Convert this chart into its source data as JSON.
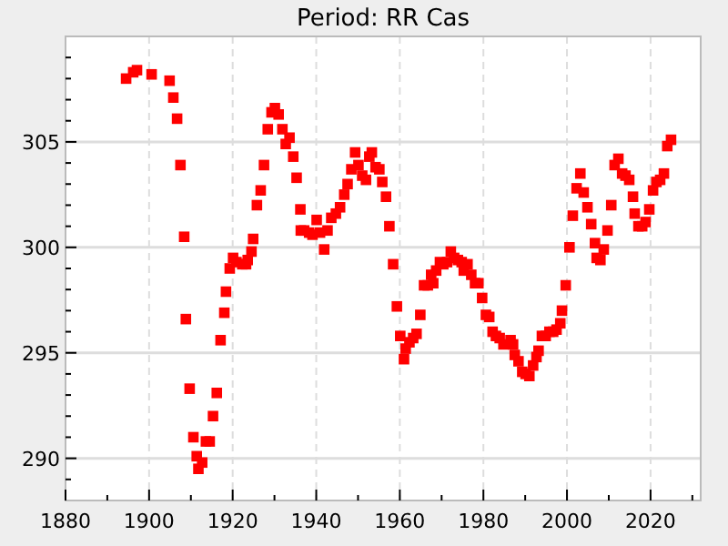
{
  "chart_data": {
    "type": "scatter",
    "title": "Period: RR Cas",
    "marker": "square",
    "grid": true,
    "xlim": [
      1880,
      2032
    ],
    "xticks": [
      1880,
      {
        "value": 1890,
        "label": null
      },
      1900,
      {
        "value": 1910,
        "label": null
      },
      1920,
      {
        "value": 1930,
        "label": null
      },
      1940,
      {
        "value": 1950,
        "label": null
      },
      1960,
      {
        "value": 1970,
        "label": null
      },
      1980,
      {
        "value": 1990,
        "label": null
      },
      2000,
      {
        "value": 2010,
        "label": null
      },
      2020,
      {
        "value": 2030,
        "label": null
      }
    ],
    "ylim": [
      288,
      310
    ],
    "yticks": [
      {
        "value": 289,
        "label": null
      },
      290,
      {
        "value": 291,
        "label": null
      },
      {
        "value": 292,
        "label": null
      },
      {
        "value": 293,
        "label": null
      },
      {
        "value": 294,
        "label": null
      },
      295,
      {
        "value": 296,
        "label": null
      },
      {
        "value": 297,
        "label": null
      },
      {
        "value": 298,
        "label": null
      },
      {
        "value": 299,
        "label": null
      },
      300,
      {
        "value": 301,
        "label": null
      },
      {
        "value": 302,
        "label": null
      },
      {
        "value": 303,
        "label": null
      },
      {
        "value": 304,
        "label": null
      },
      305,
      {
        "value": 306,
        "label": null
      },
      {
        "value": 307,
        "label": null
      },
      {
        "value": 308,
        "label": null
      },
      {
        "value": 309,
        "label": null
      }
    ],
    "series": [
      {
        "color": "#ff0000",
        "x": [
          1894.5,
          1896.2,
          1897.1,
          1900.6,
          1904.9,
          1905.8,
          1906.7,
          1907.5,
          1908.4,
          1908.8,
          1909.7,
          1910.6,
          1911.4,
          1911.8,
          1912.7,
          1913.6,
          1914.5,
          1915.3,
          1916.2,
          1917.1,
          1918.0,
          1918.4,
          1919.3,
          1920.1,
          1920.9,
          1922.3,
          1923.2,
          1923.6,
          1924.5,
          1924.9,
          1925.8,
          1926.7,
          1927.5,
          1928.4,
          1929.3,
          1930.1,
          1931.0,
          1931.9,
          1932.7,
          1933.6,
          1934.5,
          1935.3,
          1936.2,
          1936.3,
          1937.1,
          1938.3,
          1939.1,
          1940.1,
          1940.9,
          1941.9,
          1942.7,
          1943.6,
          1944.7,
          1945.7,
          1946.7,
          1947.5,
          1948.4,
          1949.3,
          1950.1,
          1951.0,
          1951.9,
          1952.7,
          1953.3,
          1954.2,
          1955.1,
          1955.8,
          1956.7,
          1957.5,
          1958.4,
          1959.3,
          1960.1,
          1961.0,
          1961.4,
          1962.3,
          1963.2,
          1964.0,
          1964.9,
          1965.8,
          1966.7,
          1967.5,
          1968.0,
          1968.7,
          1969.6,
          1970.4,
          1971.3,
          1972.2,
          1973.0,
          1973.9,
          1974.8,
          1975.3,
          1976.2,
          1977.1,
          1978.0,
          1978.8,
          1979.7,
          1980.6,
          1981.4,
          1982.2,
          1983.0,
          1983.9,
          1984.8,
          1986.5,
          1987.1,
          1987.5,
          1988.4,
          1989.3,
          1990.1,
          1991.0,
          1991.9,
          1992.7,
          1993.2,
          1994.0,
          1994.9,
          1995.8,
          1996.7,
          1997.5,
          1998.4,
          1998.8,
          1999.7,
          2000.6,
          2001.4,
          2002.3,
          2003.2,
          2004.0,
          2004.9,
          2005.8,
          2006.7,
          2007.1,
          2008.0,
          2008.8,
          2009.7,
          2010.6,
          2011.4,
          2012.3,
          2013.2,
          2014.0,
          2014.9,
          2015.8,
          2016.2,
          2017.1,
          2018.0,
          2018.8,
          2019.7,
          2020.6,
          2021.4,
          2022.3,
          2023.2,
          2024.0,
          2024.9
        ],
        "values": [
          308.0,
          308.3,
          308.4,
          308.2,
          307.9,
          307.1,
          306.1,
          303.9,
          300.5,
          296.6,
          293.3,
          291.0,
          290.1,
          289.5,
          289.8,
          290.8,
          290.8,
          292.0,
          293.1,
          295.6,
          296.9,
          297.9,
          299.0,
          299.5,
          299.3,
          299.2,
          299.2,
          299.4,
          299.8,
          300.4,
          302.0,
          302.7,
          303.9,
          305.6,
          306.4,
          306.6,
          306.3,
          305.6,
          304.9,
          305.2,
          304.3,
          303.3,
          301.8,
          300.8,
          300.8,
          300.7,
          300.6,
          301.3,
          300.7,
          299.9,
          300.8,
          301.4,
          301.6,
          301.9,
          302.5,
          303.0,
          303.7,
          304.5,
          303.9,
          303.4,
          303.2,
          304.3,
          304.5,
          303.8,
          303.7,
          303.1,
          302.4,
          301.0,
          299.2,
          297.2,
          295.8,
          294.7,
          295.2,
          295.5,
          295.7,
          295.9,
          296.8,
          298.2,
          298.2,
          298.7,
          298.3,
          298.9,
          299.3,
          299.2,
          299.3,
          299.8,
          299.5,
          299.4,
          299.3,
          298.9,
          299.2,
          298.7,
          298.3,
          298.3,
          297.6,
          296.8,
          296.7,
          296.0,
          295.8,
          295.7,
          295.4,
          295.6,
          295.4,
          294.9,
          294.6,
          294.1,
          294.0,
          293.9,
          294.4,
          294.8,
          295.1,
          295.8,
          295.8,
          296.0,
          296.0,
          296.1,
          296.4,
          297.0,
          298.2,
          300.0,
          301.5,
          302.8,
          303.5,
          302.6,
          301.9,
          301.1,
          300.2,
          299.5,
          299.4,
          299.9,
          300.8,
          302.0,
          303.9,
          304.2,
          303.5,
          303.4,
          303.2,
          302.4,
          301.6,
          301.0,
          301.0,
          301.2,
          301.8,
          302.7,
          303.1,
          303.2,
          303.5,
          304.8,
          305.1
        ]
      }
    ]
  }
}
